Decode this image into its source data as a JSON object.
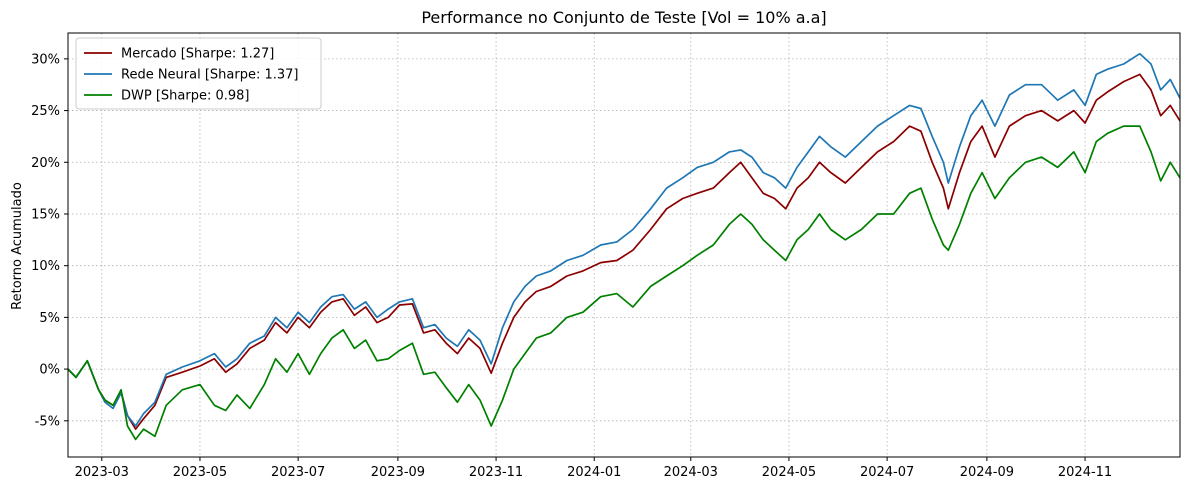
{
  "chart_data": {
    "type": "line",
    "title": "Performance no Conjunto de Teste [Vol = 10% a.a]",
    "xlabel": "",
    "ylabel": "Retorno Acumulado",
    "xlim": [
      "2023-02-08",
      "2024-12-30"
    ],
    "ylim": [
      -8.5,
      32.5
    ],
    "x_ticks": [
      "2023-03",
      "2023-05",
      "2023-07",
      "2023-09",
      "2023-11",
      "2024-01",
      "2024-03",
      "2024-05",
      "2024-07",
      "2024-09",
      "2024-11"
    ],
    "y_ticks": [
      -5,
      0,
      5,
      10,
      15,
      20,
      25,
      30
    ],
    "y_tick_labels": [
      "-5%",
      "0%",
      "5%",
      "10%",
      "15%",
      "20%",
      "25%",
      "30%"
    ],
    "grid": true,
    "legend_position": "upper-left",
    "series": [
      {
        "name": "Mercado [Sharpe: 1.27]",
        "color": "#8b0000",
        "points": [
          [
            "2023-02-08",
            0.0
          ],
          [
            "2023-02-13",
            -0.8
          ],
          [
            "2023-02-20",
            0.8
          ],
          [
            "2023-02-27",
            -2.0
          ],
          [
            "2023-03-03",
            -3.0
          ],
          [
            "2023-03-08",
            -3.5
          ],
          [
            "2023-03-13",
            -2.2
          ],
          [
            "2023-03-17",
            -4.5
          ],
          [
            "2023-03-22",
            -5.8
          ],
          [
            "2023-03-27",
            -4.8
          ],
          [
            "2023-04-03",
            -3.5
          ],
          [
            "2023-04-10",
            -0.8
          ],
          [
            "2023-04-20",
            -0.3
          ],
          [
            "2023-05-01",
            0.3
          ],
          [
            "2023-05-10",
            1.0
          ],
          [
            "2023-05-17",
            -0.3
          ],
          [
            "2023-05-24",
            0.5
          ],
          [
            "2023-06-01",
            2.0
          ],
          [
            "2023-06-10",
            2.8
          ],
          [
            "2023-06-17",
            4.5
          ],
          [
            "2023-06-24",
            3.5
          ],
          [
            "2023-07-01",
            5.0
          ],
          [
            "2023-07-08",
            4.0
          ],
          [
            "2023-07-15",
            5.5
          ],
          [
            "2023-07-22",
            6.5
          ],
          [
            "2023-07-29",
            6.8
          ],
          [
            "2023-08-05",
            5.2
          ],
          [
            "2023-08-12",
            6.0
          ],
          [
            "2023-08-19",
            4.5
          ],
          [
            "2023-08-26",
            5.0
          ],
          [
            "2023-09-02",
            6.2
          ],
          [
            "2023-09-10",
            6.3
          ],
          [
            "2023-09-17",
            3.5
          ],
          [
            "2023-09-24",
            3.8
          ],
          [
            "2023-10-01",
            2.5
          ],
          [
            "2023-10-08",
            1.5
          ],
          [
            "2023-10-15",
            3.0
          ],
          [
            "2023-10-22",
            2.0
          ],
          [
            "2023-10-29",
            -0.4
          ],
          [
            "2023-11-05",
            2.5
          ],
          [
            "2023-11-12",
            5.0
          ],
          [
            "2023-11-19",
            6.5
          ],
          [
            "2023-11-26",
            7.5
          ],
          [
            "2023-12-05",
            8.0
          ],
          [
            "2023-12-15",
            9.0
          ],
          [
            "2023-12-25",
            9.5
          ],
          [
            "2024-01-05",
            10.3
          ],
          [
            "2024-01-15",
            10.5
          ],
          [
            "2024-01-25",
            11.5
          ],
          [
            "2024-02-05",
            13.5
          ],
          [
            "2024-02-15",
            15.5
          ],
          [
            "2024-02-25",
            16.5
          ],
          [
            "2024-03-05",
            17.0
          ],
          [
            "2024-03-15",
            17.5
          ],
          [
            "2024-03-25",
            19.0
          ],
          [
            "2024-04-01",
            20.0
          ],
          [
            "2024-04-08",
            18.5
          ],
          [
            "2024-04-15",
            17.0
          ],
          [
            "2024-04-22",
            16.5
          ],
          [
            "2024-04-29",
            15.5
          ],
          [
            "2024-05-06",
            17.5
          ],
          [
            "2024-05-13",
            18.5
          ],
          [
            "2024-05-20",
            20.0
          ],
          [
            "2024-05-27",
            19.0
          ],
          [
            "2024-06-05",
            18.0
          ],
          [
            "2024-06-15",
            19.5
          ],
          [
            "2024-06-25",
            21.0
          ],
          [
            "2024-07-05",
            22.0
          ],
          [
            "2024-07-15",
            23.5
          ],
          [
            "2024-07-22",
            23.0
          ],
          [
            "2024-07-29",
            20.0
          ],
          [
            "2024-08-05",
            17.5
          ],
          [
            "2024-08-08",
            15.5
          ],
          [
            "2024-08-15",
            19.0
          ],
          [
            "2024-08-22",
            22.0
          ],
          [
            "2024-08-29",
            23.5
          ],
          [
            "2024-09-06",
            20.5
          ],
          [
            "2024-09-15",
            23.5
          ],
          [
            "2024-09-25",
            24.5
          ],
          [
            "2024-10-05",
            25.0
          ],
          [
            "2024-10-15",
            24.0
          ],
          [
            "2024-10-25",
            25.0
          ],
          [
            "2024-11-01",
            23.8
          ],
          [
            "2024-11-08",
            26.0
          ],
          [
            "2024-11-15",
            26.8
          ],
          [
            "2024-11-25",
            27.8
          ],
          [
            "2024-12-05",
            28.5
          ],
          [
            "2024-12-12",
            27.0
          ],
          [
            "2024-12-18",
            24.5
          ],
          [
            "2024-12-24",
            25.5
          ],
          [
            "2024-12-30",
            24.0
          ]
        ]
      },
      {
        "name": "Rede Neural [Sharpe: 1.37]",
        "color": "#1f77b4",
        "points": [
          [
            "2023-02-08",
            0.0
          ],
          [
            "2023-02-13",
            -0.8
          ],
          [
            "2023-02-20",
            0.8
          ],
          [
            "2023-02-27",
            -2.0
          ],
          [
            "2023-03-03",
            -3.2
          ],
          [
            "2023-03-08",
            -3.8
          ],
          [
            "2023-03-13",
            -2.3
          ],
          [
            "2023-03-17",
            -4.5
          ],
          [
            "2023-03-22",
            -5.5
          ],
          [
            "2023-03-27",
            -4.3
          ],
          [
            "2023-04-03",
            -3.2
          ],
          [
            "2023-04-10",
            -0.5
          ],
          [
            "2023-04-20",
            0.2
          ],
          [
            "2023-05-01",
            0.8
          ],
          [
            "2023-05-10",
            1.5
          ],
          [
            "2023-05-17",
            0.2
          ],
          [
            "2023-05-24",
            1.0
          ],
          [
            "2023-06-01",
            2.5
          ],
          [
            "2023-06-10",
            3.2
          ],
          [
            "2023-06-17",
            5.0
          ],
          [
            "2023-06-24",
            4.0
          ],
          [
            "2023-07-01",
            5.5
          ],
          [
            "2023-07-08",
            4.5
          ],
          [
            "2023-07-15",
            6.0
          ],
          [
            "2023-07-22",
            7.0
          ],
          [
            "2023-07-29",
            7.2
          ],
          [
            "2023-08-05",
            5.8
          ],
          [
            "2023-08-12",
            6.5
          ],
          [
            "2023-08-19",
            5.0
          ],
          [
            "2023-08-26",
            5.8
          ],
          [
            "2023-09-02",
            6.5
          ],
          [
            "2023-09-10",
            6.8
          ],
          [
            "2023-09-17",
            4.0
          ],
          [
            "2023-09-24",
            4.3
          ],
          [
            "2023-10-01",
            3.0
          ],
          [
            "2023-10-08",
            2.2
          ],
          [
            "2023-10-15",
            3.8
          ],
          [
            "2023-10-22",
            2.8
          ],
          [
            "2023-10-29",
            0.5
          ],
          [
            "2023-11-05",
            4.0
          ],
          [
            "2023-11-12",
            6.5
          ],
          [
            "2023-11-19",
            8.0
          ],
          [
            "2023-11-26",
            9.0
          ],
          [
            "2023-12-05",
            9.5
          ],
          [
            "2023-12-15",
            10.5
          ],
          [
            "2023-12-25",
            11.0
          ],
          [
            "2024-01-05",
            12.0
          ],
          [
            "2024-01-15",
            12.3
          ],
          [
            "2024-01-25",
            13.5
          ],
          [
            "2024-02-05",
            15.5
          ],
          [
            "2024-02-15",
            17.5
          ],
          [
            "2024-02-25",
            18.5
          ],
          [
            "2024-03-05",
            19.5
          ],
          [
            "2024-03-15",
            20.0
          ],
          [
            "2024-03-25",
            21.0
          ],
          [
            "2024-04-01",
            21.2
          ],
          [
            "2024-04-08",
            20.5
          ],
          [
            "2024-04-15",
            19.0
          ],
          [
            "2024-04-22",
            18.5
          ],
          [
            "2024-04-29",
            17.5
          ],
          [
            "2024-05-06",
            19.5
          ],
          [
            "2024-05-13",
            21.0
          ],
          [
            "2024-05-20",
            22.5
          ],
          [
            "2024-05-27",
            21.5
          ],
          [
            "2024-06-05",
            20.5
          ],
          [
            "2024-06-15",
            22.0
          ],
          [
            "2024-06-25",
            23.5
          ],
          [
            "2024-07-05",
            24.5
          ],
          [
            "2024-07-15",
            25.5
          ],
          [
            "2024-07-22",
            25.2
          ],
          [
            "2024-07-29",
            22.5
          ],
          [
            "2024-08-05",
            20.0
          ],
          [
            "2024-08-08",
            18.0
          ],
          [
            "2024-08-15",
            21.5
          ],
          [
            "2024-08-22",
            24.5
          ],
          [
            "2024-08-29",
            26.0
          ],
          [
            "2024-09-06",
            23.5
          ],
          [
            "2024-09-15",
            26.5
          ],
          [
            "2024-09-25",
            27.5
          ],
          [
            "2024-10-05",
            27.5
          ],
          [
            "2024-10-15",
            26.0
          ],
          [
            "2024-10-25",
            27.0
          ],
          [
            "2024-11-01",
            25.5
          ],
          [
            "2024-11-08",
            28.5
          ],
          [
            "2024-11-15",
            29.0
          ],
          [
            "2024-11-25",
            29.5
          ],
          [
            "2024-12-05",
            30.5
          ],
          [
            "2024-12-12",
            29.5
          ],
          [
            "2024-12-18",
            27.0
          ],
          [
            "2024-12-24",
            28.0
          ],
          [
            "2024-12-30",
            26.2
          ]
        ]
      },
      {
        "name": "DWP [Sharpe: 0.98]",
        "color": "#008000",
        "points": [
          [
            "2023-02-08",
            0.0
          ],
          [
            "2023-02-13",
            -0.8
          ],
          [
            "2023-02-20",
            0.8
          ],
          [
            "2023-02-27",
            -2.0
          ],
          [
            "2023-03-03",
            -3.0
          ],
          [
            "2023-03-08",
            -3.5
          ],
          [
            "2023-03-13",
            -2.0
          ],
          [
            "2023-03-17",
            -5.5
          ],
          [
            "2023-03-22",
            -6.8
          ],
          [
            "2023-03-27",
            -5.8
          ],
          [
            "2023-04-03",
            -6.5
          ],
          [
            "2023-04-10",
            -3.5
          ],
          [
            "2023-04-20",
            -2.0
          ],
          [
            "2023-05-01",
            -1.5
          ],
          [
            "2023-05-10",
            -3.5
          ],
          [
            "2023-05-17",
            -4.0
          ],
          [
            "2023-05-24",
            -2.5
          ],
          [
            "2023-06-01",
            -3.8
          ],
          [
            "2023-06-10",
            -1.5
          ],
          [
            "2023-06-17",
            1.0
          ],
          [
            "2023-06-24",
            -0.3
          ],
          [
            "2023-07-01",
            1.5
          ],
          [
            "2023-07-08",
            -0.5
          ],
          [
            "2023-07-15",
            1.5
          ],
          [
            "2023-07-22",
            3.0
          ],
          [
            "2023-07-29",
            3.8
          ],
          [
            "2023-08-05",
            2.0
          ],
          [
            "2023-08-12",
            2.8
          ],
          [
            "2023-08-19",
            0.8
          ],
          [
            "2023-08-26",
            1.0
          ],
          [
            "2023-09-02",
            1.8
          ],
          [
            "2023-09-10",
            2.5
          ],
          [
            "2023-09-17",
            -0.5
          ],
          [
            "2023-09-24",
            -0.3
          ],
          [
            "2023-10-01",
            -1.8
          ],
          [
            "2023-10-08",
            -3.2
          ],
          [
            "2023-10-15",
            -1.5
          ],
          [
            "2023-10-22",
            -3.0
          ],
          [
            "2023-10-29",
            -5.5
          ],
          [
            "2023-11-05",
            -3.0
          ],
          [
            "2023-11-12",
            0.0
          ],
          [
            "2023-11-19",
            1.5
          ],
          [
            "2023-11-26",
            3.0
          ],
          [
            "2023-12-05",
            3.5
          ],
          [
            "2023-12-15",
            5.0
          ],
          [
            "2023-12-25",
            5.5
          ],
          [
            "2024-01-05",
            7.0
          ],
          [
            "2024-01-15",
            7.3
          ],
          [
            "2024-01-25",
            6.0
          ],
          [
            "2024-02-05",
            8.0
          ],
          [
            "2024-02-15",
            9.0
          ],
          [
            "2024-02-25",
            10.0
          ],
          [
            "2024-03-05",
            11.0
          ],
          [
            "2024-03-15",
            12.0
          ],
          [
            "2024-03-25",
            14.0
          ],
          [
            "2024-04-01",
            15.0
          ],
          [
            "2024-04-08",
            14.0
          ],
          [
            "2024-04-15",
            12.5
          ],
          [
            "2024-04-22",
            11.5
          ],
          [
            "2024-04-29",
            10.5
          ],
          [
            "2024-05-06",
            12.5
          ],
          [
            "2024-05-13",
            13.5
          ],
          [
            "2024-05-20",
            15.0
          ],
          [
            "2024-05-27",
            13.5
          ],
          [
            "2024-06-05",
            12.5
          ],
          [
            "2024-06-15",
            13.5
          ],
          [
            "2024-06-25",
            15.0
          ],
          [
            "2024-07-05",
            15.0
          ],
          [
            "2024-07-15",
            17.0
          ],
          [
            "2024-07-22",
            17.5
          ],
          [
            "2024-07-29",
            14.5
          ],
          [
            "2024-08-05",
            12.0
          ],
          [
            "2024-08-08",
            11.5
          ],
          [
            "2024-08-15",
            14.0
          ],
          [
            "2024-08-22",
            17.0
          ],
          [
            "2024-08-29",
            19.0
          ],
          [
            "2024-09-06",
            16.5
          ],
          [
            "2024-09-15",
            18.5
          ],
          [
            "2024-09-25",
            20.0
          ],
          [
            "2024-10-05",
            20.5
          ],
          [
            "2024-10-15",
            19.5
          ],
          [
            "2024-10-25",
            21.0
          ],
          [
            "2024-11-01",
            19.0
          ],
          [
            "2024-11-08",
            22.0
          ],
          [
            "2024-11-15",
            22.8
          ],
          [
            "2024-11-25",
            23.5
          ],
          [
            "2024-12-05",
            23.5
          ],
          [
            "2024-12-12",
            21.0
          ],
          [
            "2024-12-18",
            18.2
          ],
          [
            "2024-12-24",
            20.0
          ],
          [
            "2024-12-30",
            18.5
          ]
        ]
      }
    ]
  }
}
